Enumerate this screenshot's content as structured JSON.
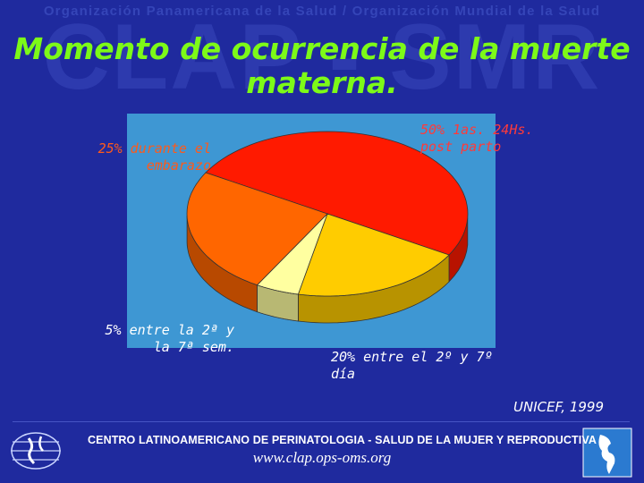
{
  "header": {
    "organization": "Organización Panamericana de la Salud / Organización Mundial de la Salud",
    "watermark": "CLAP - SMR"
  },
  "title": "Momento de ocurrencia de la muerte materna.",
  "chart_data": {
    "type": "pie",
    "title": "Momento de ocurrencia de la muerte materna.",
    "slices": [
      {
        "label": "50% 1as. 24Hs. post parto",
        "value": 50,
        "color": "#ff1a00"
      },
      {
        "label": "20% entre el 2º y 7º día",
        "value": 20,
        "color": "#ffcc00"
      },
      {
        "label": "5% entre la 2ª y la 7ª sem.",
        "value": 5,
        "color": "#ffffa0"
      },
      {
        "label": "25% durante el embarazo",
        "value": 25,
        "color": "#ff6600"
      }
    ],
    "labels_display": {
      "embarazo": "25% durante el embarazo",
      "post_parto": "50% 1as. 24Hs. post parto",
      "semanas": "5% entre la 2ª y la 7ª sem.",
      "dias": "20% entre el 2º y 7º día"
    },
    "panel_color": "#3e97d3",
    "legend": "none"
  },
  "source": "UNICEF, 1999",
  "footer": {
    "organization": "CENTRO LATINOAMERICANO DE PERINATOLOGIA - SALUD DE LA MUJER Y REPRODUCTIVA",
    "url": "www.clap.ops-oms.org",
    "logo_left_icon": "ops-globe-logo-icon",
    "logo_right_icon": "americas-map-logo-icon"
  },
  "colors": {
    "background": "#1f2a9e",
    "title": "#7dfa18"
  }
}
